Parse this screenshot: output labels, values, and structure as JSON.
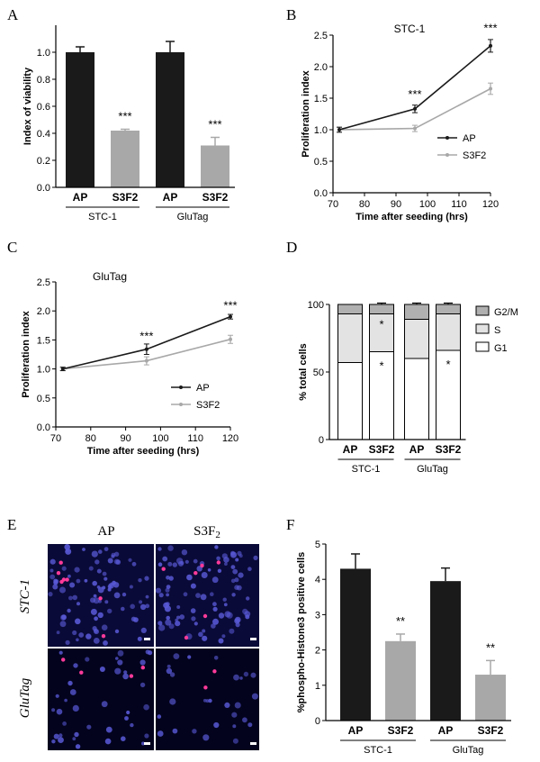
{
  "panels": {
    "A": "A",
    "B": "B",
    "C": "C",
    "D": "D",
    "E": "E",
    "F": "F"
  },
  "colors": {
    "ap": "#1a1a1a",
    "s3f2": "#a8a8a8",
    "g1": "#ffffff",
    "s": "#e3e3e3",
    "g2m": "#b0b0b0"
  },
  "micrograph": {
    "col_ap": "AP",
    "col_s3f2_base": "S3F",
    "col_s3f2_sub": "2",
    "row_stc1": "STC-1",
    "row_glutag": "GluTag"
  },
  "chart_data": [
    {
      "id": "A",
      "type": "bar",
      "ylabel": "Index of viability",
      "ylim": [
        0,
        1.2
      ],
      "yticks": [
        "0.0",
        "0.2",
        "0.4",
        "0.6",
        "0.8",
        "1.0"
      ],
      "yticks_values": [
        0,
        0.2,
        0.4,
        0.6,
        0.8,
        1.0
      ],
      "categories": [
        "AP",
        "S3F2",
        "AP",
        "S3F2"
      ],
      "values": [
        1.0,
        0.42,
        1.0,
        0.31
      ],
      "errors": [
        0.04,
        0.01,
        0.08,
        0.06
      ],
      "bar_colors": [
        "ap",
        "s3f2",
        "ap",
        "s3f2"
      ],
      "significance": [
        "",
        "***",
        "",
        "***"
      ],
      "groups": [
        "STC-1",
        "GluTag"
      ]
    },
    {
      "id": "B",
      "type": "line",
      "title": "STC-1",
      "xlabel": "Time after seeding (hrs)",
      "ylabel": "Proliferation index",
      "xlim": [
        70,
        120
      ],
      "ylim": [
        0,
        2.5
      ],
      "xticks": [
        "70",
        "80",
        "90",
        "100",
        "110",
        "120"
      ],
      "xticks_values": [
        70,
        80,
        90,
        100,
        110,
        120
      ],
      "yticks": [
        "0.0",
        "0.5",
        "1.0",
        "1.5",
        "2.0",
        "2.5"
      ],
      "yticks_values": [
        0,
        0.5,
        1.0,
        1.5,
        2.0,
        2.5
      ],
      "x": [
        72,
        96,
        120
      ],
      "series": [
        {
          "name": "AP",
          "color": "ap",
          "values": [
            1.0,
            1.33,
            2.33
          ],
          "errors": [
            0.04,
            0.06,
            0.1
          ]
        },
        {
          "name": "S3F2",
          "color": "s3f2",
          "values": [
            1.0,
            1.02,
            1.65
          ],
          "errors": [
            0.04,
            0.05,
            0.09
          ]
        }
      ],
      "significance": [
        {
          "x": 96,
          "y": 1.5,
          "text": "***"
        },
        {
          "x": 120,
          "y": 2.55,
          "text": "***"
        }
      ]
    },
    {
      "id": "C",
      "type": "line",
      "title": "GluTag",
      "xlabel": "Time after seeding (hrs)",
      "ylabel": "Proliferation index",
      "xlim": [
        70,
        120
      ],
      "ylim": [
        0,
        2.5
      ],
      "xticks": [
        "70",
        "80",
        "90",
        "100",
        "110",
        "120"
      ],
      "xticks_values": [
        70,
        80,
        90,
        100,
        110,
        120
      ],
      "yticks": [
        "0.0",
        "0.5",
        "1.0",
        "1.5",
        "2.0",
        "2.5"
      ],
      "yticks_values": [
        0,
        0.5,
        1.0,
        1.5,
        2.0,
        2.5
      ],
      "x": [
        72,
        96,
        120
      ],
      "series": [
        {
          "name": "AP",
          "color": "ap",
          "values": [
            1.0,
            1.34,
            1.9
          ],
          "errors": [
            0.03,
            0.09,
            0.04
          ]
        },
        {
          "name": "S3F2",
          "color": "s3f2",
          "values": [
            1.0,
            1.14,
            1.51
          ],
          "errors": [
            0.03,
            0.07,
            0.07
          ]
        }
      ],
      "significance": [
        {
          "x": 96,
          "y": 1.5,
          "text": "***"
        },
        {
          "x": 120,
          "y": 2.03,
          "text": "***"
        }
      ]
    },
    {
      "id": "D",
      "type": "bar",
      "stacked": true,
      "ylabel": "% total cells",
      "ylim": [
        0,
        100
      ],
      "yticks": [
        "0",
        "50",
        "100"
      ],
      "yticks_values": [
        0,
        50,
        100
      ],
      "categories": [
        "AP",
        "S3F2",
        "AP",
        "S3F2"
      ],
      "groups": [
        "STC-1",
        "GluTag"
      ],
      "series": [
        {
          "name": "G1",
          "color": "g1",
          "values": [
            57,
            65,
            60,
            66
          ],
          "errors": [
            1,
            1,
            1,
            1
          ]
        },
        {
          "name": "S",
          "color": "s",
          "values": [
            36,
            28,
            29,
            27
          ],
          "errors": [
            1,
            1,
            1,
            1
          ]
        },
        {
          "name": "G2/M",
          "color": "g2m",
          "values": [
            7,
            7,
            11,
            7
          ],
          "errors": [
            0,
            1,
            1,
            1
          ]
        }
      ],
      "legend_order": [
        "G2/M",
        "S",
        "G1"
      ],
      "significance_g1": [
        "",
        "*",
        "",
        "*"
      ],
      "significance_s": [
        "",
        "*",
        "",
        ""
      ]
    },
    {
      "id": "F",
      "type": "bar",
      "ylabel": "%phospho-Histone3 positive cells",
      "ylim": [
        0,
        5
      ],
      "yticks": [
        "0",
        "1",
        "2",
        "3",
        "4",
        "5"
      ],
      "yticks_values": [
        0,
        1,
        2,
        3,
        4,
        5
      ],
      "categories": [
        "AP",
        "S3F2",
        "AP",
        "S3F2"
      ],
      "values": [
        4.3,
        2.25,
        3.95,
        1.3
      ],
      "errors": [
        0.42,
        0.2,
        0.37,
        0.4
      ],
      "bar_colors": [
        "ap",
        "s3f2",
        "ap",
        "s3f2"
      ],
      "significance": [
        "",
        "**",
        "",
        "**"
      ],
      "groups": [
        "STC-1",
        "GluTag"
      ]
    }
  ]
}
